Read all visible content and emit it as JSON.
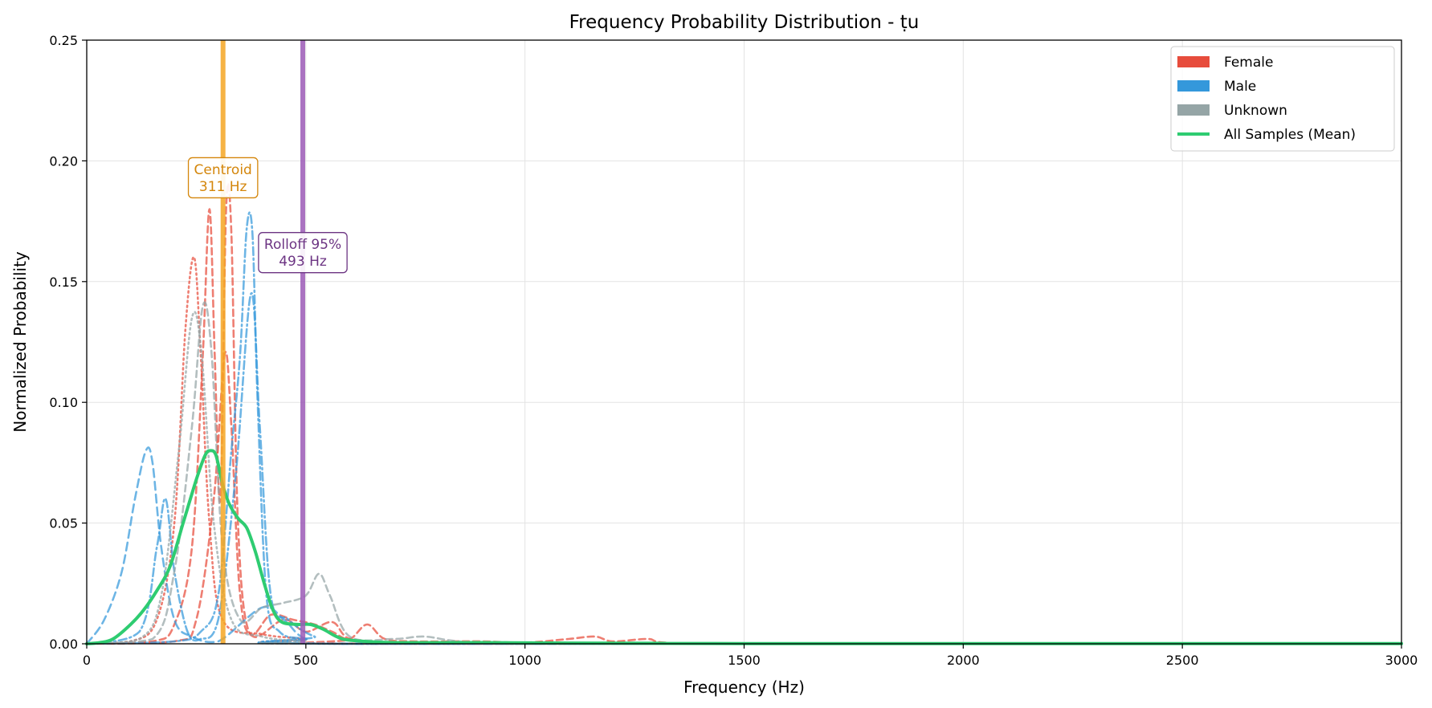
{
  "chart_data": {
    "type": "line",
    "title": "Frequency Probability Distribution - ṭu",
    "xlabel": "Frequency (Hz)",
    "ylabel": "Normalized Probability",
    "xlim": [
      0,
      3000
    ],
    "ylim": [
      0,
      0.25
    ],
    "xticks": [
      0,
      500,
      1000,
      1500,
      2000,
      2500,
      3000
    ],
    "xtick_labels": [
      "0",
      "500",
      "1000",
      "1500",
      "2000",
      "2500",
      "3000"
    ],
    "yticks": [
      0,
      0.05,
      0.1,
      0.15,
      0.2,
      0.25
    ],
    "ytick_labels": [
      "0.00",
      "0.05",
      "0.10",
      "0.15",
      "0.20",
      "0.25"
    ],
    "grid": true,
    "legend_position": "top-right",
    "legend": [
      {
        "label": "Female",
        "kind": "patch",
        "color": "#e74c3c"
      },
      {
        "label": "Male",
        "kind": "patch",
        "color": "#3498db"
      },
      {
        "label": "Unknown",
        "kind": "patch",
        "color": "#95a5a6"
      },
      {
        "label": "All Samples (Mean)",
        "kind": "line",
        "color": "#2ecc71"
      }
    ],
    "series": [
      {
        "group": "Female",
        "color": "#e74c3c",
        "dash": "8,5",
        "points": [
          [
            0,
            0
          ],
          [
            150,
            0.001
          ],
          [
            200,
            0.008
          ],
          [
            240,
            0.04
          ],
          [
            265,
            0.12
          ],
          [
            280,
            0.18
          ],
          [
            292,
            0.12
          ],
          [
            305,
            0.06
          ],
          [
            318,
            0.18
          ],
          [
            330,
            0.17
          ],
          [
            345,
            0.05
          ],
          [
            370,
            0.005
          ],
          [
            420,
            0.012
          ],
          [
            470,
            0.01
          ],
          [
            520,
            0.008
          ],
          [
            560,
            0.005
          ],
          [
            600,
            0.002
          ],
          [
            640,
            0.008
          ],
          [
            680,
            0.002
          ],
          [
            750,
            0.001
          ],
          [
            900,
            0.001
          ],
          [
            1000,
            0.0005
          ],
          [
            1100,
            0.002
          ],
          [
            1160,
            0.003
          ],
          [
            1200,
            0.001
          ],
          [
            1280,
            0.002
          ],
          [
            1320,
            0.0005
          ],
          [
            1500,
            0
          ],
          [
            3000,
            0
          ]
        ]
      },
      {
        "group": "Female",
        "color": "#e74c3c",
        "dash": "2,4",
        "points": [
          [
            0,
            0
          ],
          [
            100,
            0.001
          ],
          [
            160,
            0.01
          ],
          [
            200,
            0.05
          ],
          [
            225,
            0.13
          ],
          [
            245,
            0.16
          ],
          [
            260,
            0.12
          ],
          [
            280,
            0.05
          ],
          [
            310,
            0.01
          ],
          [
            400,
            0.004
          ],
          [
            500,
            0.002
          ],
          [
            600,
            0
          ],
          [
            3000,
            0
          ]
        ]
      },
      {
        "group": "Female",
        "color": "#e74c3c",
        "dash": "8,5",
        "points": [
          [
            0,
            0
          ],
          [
            200,
            0.001
          ],
          [
            250,
            0.01
          ],
          [
            290,
            0.06
          ],
          [
            315,
            0.12
          ],
          [
            330,
            0.09
          ],
          [
            350,
            0.02
          ],
          [
            380,
            0.003
          ],
          [
            450,
            0.01
          ],
          [
            500,
            0.005
          ],
          [
            560,
            0.009
          ],
          [
            600,
            0.002
          ],
          [
            700,
            0
          ],
          [
            3000,
            0
          ]
        ]
      },
      {
        "group": "Male",
        "color": "#3498db",
        "dash": "10,6",
        "points": [
          [
            0,
            0
          ],
          [
            40,
            0.01
          ],
          [
            80,
            0.03
          ],
          [
            110,
            0.06
          ],
          [
            135,
            0.08
          ],
          [
            150,
            0.075
          ],
          [
            170,
            0.04
          ],
          [
            200,
            0.01
          ],
          [
            240,
            0.003
          ],
          [
            300,
            0.001
          ],
          [
            400,
            0.015
          ],
          [
            450,
            0.01
          ],
          [
            500,
            0.002
          ],
          [
            600,
            0
          ],
          [
            3000,
            0
          ]
        ]
      },
      {
        "group": "Male",
        "color": "#3498db",
        "dash": "10,4,2,4",
        "points": [
          [
            0,
            0
          ],
          [
            200,
            0.001
          ],
          [
            260,
            0.005
          ],
          [
            300,
            0.02
          ],
          [
            330,
            0.08
          ],
          [
            350,
            0.12
          ],
          [
            365,
            0.172
          ],
          [
            378,
            0.17
          ],
          [
            390,
            0.1
          ],
          [
            410,
            0.02
          ],
          [
            440,
            0.005
          ],
          [
            500,
            0.002
          ],
          [
            600,
            0
          ],
          [
            3000,
            0
          ]
        ]
      },
      {
        "group": "Male",
        "color": "#3498db",
        "dash": "10,4,2,4",
        "points": [
          [
            0,
            0
          ],
          [
            120,
            0.005
          ],
          [
            160,
            0.04
          ],
          [
            180,
            0.06
          ],
          [
            200,
            0.03
          ],
          [
            230,
            0.005
          ],
          [
            260,
            0.002
          ],
          [
            300,
            0.01
          ],
          [
            340,
            0.07
          ],
          [
            375,
            0.145
          ],
          [
            395,
            0.09
          ],
          [
            420,
            0.02
          ],
          [
            460,
            0.01
          ],
          [
            520,
            0.003
          ],
          [
            600,
            0
          ],
          [
            3000,
            0
          ]
        ]
      },
      {
        "group": "Unknown",
        "color": "#95a5a6",
        "dash": "8,5",
        "points": [
          [
            0,
            0
          ],
          [
            150,
            0.002
          ],
          [
            200,
            0.03
          ],
          [
            240,
            0.09
          ],
          [
            265,
            0.14
          ],
          [
            285,
            0.12
          ],
          [
            310,
            0.04
          ],
          [
            350,
            0.01
          ],
          [
            400,
            0.015
          ],
          [
            450,
            0.017
          ],
          [
            500,
            0.02
          ],
          [
            530,
            0.029
          ],
          [
            555,
            0.02
          ],
          [
            600,
            0.003
          ],
          [
            700,
            0.002
          ],
          [
            770,
            0.003
          ],
          [
            850,
            0.001
          ],
          [
            1000,
            0
          ],
          [
            3000,
            0
          ]
        ]
      },
      {
        "group": "Unknown",
        "color": "#95a5a6",
        "dash": "2,4",
        "points": [
          [
            0,
            0
          ],
          [
            120,
            0.002
          ],
          [
            170,
            0.02
          ],
          [
            210,
            0.08
          ],
          [
            240,
            0.135
          ],
          [
            262,
            0.12
          ],
          [
            290,
            0.05
          ],
          [
            330,
            0.01
          ],
          [
            400,
            0.003
          ],
          [
            500,
            0.001
          ],
          [
            600,
            0
          ],
          [
            3000,
            0
          ]
        ]
      },
      {
        "group": "All Samples (Mean)",
        "color": "#2ecc71",
        "dash": "",
        "mean": true,
        "points": [
          [
            0,
            0
          ],
          [
            30,
            0.0005
          ],
          [
            60,
            0.002
          ],
          [
            100,
            0.008
          ],
          [
            130,
            0.014
          ],
          [
            160,
            0.022
          ],
          [
            190,
            0.032
          ],
          [
            220,
            0.05
          ],
          [
            250,
            0.068
          ],
          [
            270,
            0.078
          ],
          [
            282,
            0.08
          ],
          [
            295,
            0.078
          ],
          [
            310,
            0.066
          ],
          [
            325,
            0.058
          ],
          [
            345,
            0.052
          ],
          [
            365,
            0.048
          ],
          [
            385,
            0.038
          ],
          [
            405,
            0.025
          ],
          [
            425,
            0.014
          ],
          [
            445,
            0.009
          ],
          [
            480,
            0.008
          ],
          [
            510,
            0.008
          ],
          [
            540,
            0.006
          ],
          [
            570,
            0.003
          ],
          [
            600,
            0.0015
          ],
          [
            700,
            0.0005
          ],
          [
            900,
            0.0005
          ],
          [
            1100,
            0.0003
          ],
          [
            1300,
            0.0002
          ],
          [
            1500,
            0.0001
          ],
          [
            3000,
            0.0001
          ]
        ]
      }
    ],
    "vlines": [
      {
        "name": "centroid-line",
        "x": 311,
        "color": "#f5a623"
      },
      {
        "name": "rolloff-line",
        "x": 493,
        "color": "#9b59b6"
      }
    ],
    "annotations": [
      {
        "name": "centroid-annotation",
        "x": 311,
        "y": 0.193,
        "lines": [
          "Centroid",
          "311 Hz"
        ],
        "color": "#d4860b"
      },
      {
        "name": "rolloff-annotation",
        "x": 493,
        "y": 0.162,
        "lines": [
          "Rolloff 95%",
          "493 Hz"
        ],
        "color": "#6c3483"
      }
    ]
  }
}
